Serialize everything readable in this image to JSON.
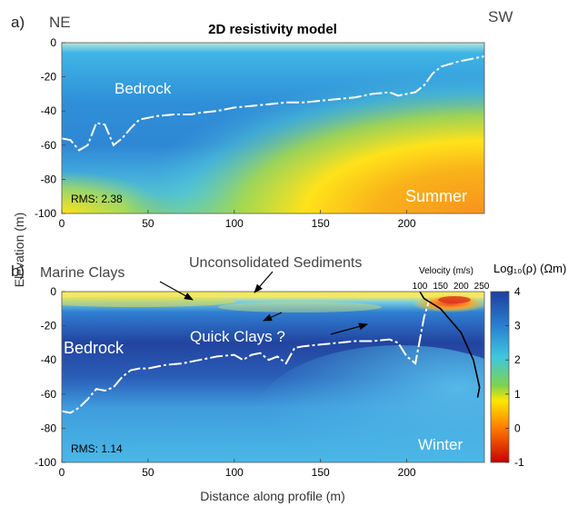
{
  "chart_data": [
    {
      "panel": "a)",
      "type": "heatmap",
      "title": "2D resistivity model",
      "corner_labels": {
        "left": "NE",
        "right": "SW"
      },
      "xlim": [
        0,
        245
      ],
      "ylim": [
        -100,
        0
      ],
      "x_ticks": [
        "0",
        "50",
        "100",
        "150",
        "200"
      ],
      "y_ticks": [
        "0",
        "-20",
        "-40",
        "-60",
        "-80",
        "-100"
      ],
      "annotations": {
        "rock": "Bedrock",
        "season": "Summer",
        "rms": "RMS: 2.38"
      },
      "bedrock_boundary": {
        "x": [
          0,
          5,
          10,
          15,
          20,
          25,
          30,
          35,
          40,
          45,
          55,
          65,
          75,
          80,
          90,
          100,
          110,
          120,
          130,
          140,
          150,
          160,
          170,
          180,
          190,
          195,
          200,
          205,
          210,
          215,
          220,
          230,
          240,
          245
        ],
        "y": [
          -56,
          -57,
          -63,
          -60,
          -47,
          -48,
          -60,
          -56,
          -50,
          -45,
          -43,
          -42,
          -42,
          -41,
          -40,
          -38,
          -37,
          -36,
          -35,
          -35,
          -34,
          -33,
          -32,
          -30,
          -29,
          -31,
          -30,
          -29,
          -25,
          -18,
          -14,
          -11,
          -9,
          -8
        ]
      }
    },
    {
      "panel": "b)",
      "type": "heatmap",
      "xlim": [
        0,
        245
      ],
      "ylim": [
        -100,
        0
      ],
      "x_ticks": [
        "0",
        "50",
        "100",
        "150",
        "200"
      ],
      "y_ticks": [
        "0",
        "-20",
        "-40",
        "-60",
        "-80",
        "-100"
      ],
      "xlabel": "Distance along profile (m)",
      "annotations": {
        "rock": "Bedrock",
        "season": "Winter",
        "rms": "RMS: 1.14",
        "marine_clays": "Marine Clays",
        "sediments": "Unconsolidated Sediments",
        "quick_clays": "Quick Clays ?"
      },
      "bedrock_boundary": {
        "x": [
          0,
          5,
          10,
          15,
          20,
          25,
          30,
          35,
          40,
          45,
          50,
          60,
          70,
          80,
          90,
          100,
          105,
          110,
          115,
          120,
          125,
          130,
          135,
          140,
          150,
          160,
          170,
          180,
          190,
          195,
          200,
          205,
          210,
          213
        ],
        "y": [
          -70,
          -71,
          -68,
          -63,
          -57,
          -58,
          -56,
          -50,
          -46,
          -45,
          -45,
          -43,
          -42,
          -40,
          -38,
          -37,
          -40,
          -37,
          -36,
          -40,
          -38,
          -42,
          -33,
          -32,
          -31,
          -30,
          -29,
          -29,
          -28,
          -30,
          -38,
          -42,
          -15,
          -5
        ]
      },
      "velocity_profile": {
        "label": "Velocity (m/s)",
        "ticks": [
          "100",
          "150",
          "200",
          "250"
        ],
        "velocity": [
          100,
          110,
          150,
          200,
          230,
          245,
          240
        ],
        "elevation": [
          0,
          -4,
          -10,
          -24,
          -40,
          -56,
          -62
        ]
      }
    }
  ],
  "shared": {
    "ylabel": "Elevation (m)",
    "colorbar": {
      "label": "Log₁₀(ρ) (Ωm)",
      "ticks": [
        "4",
        "3",
        "2",
        "1",
        "0",
        "-1"
      ],
      "range": [
        -1,
        4
      ],
      "colors": [
        "#c80000",
        "#ff7a00",
        "#ffe600",
        "#7fd34e",
        "#3ec6e0",
        "#2a7fd1",
        "#1d3f9f"
      ]
    }
  }
}
